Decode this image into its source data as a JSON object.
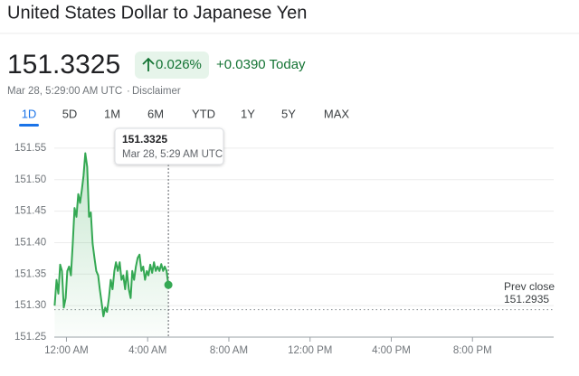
{
  "header": {
    "title": "United States Dollar to Japanese Yen",
    "price": "151.3325",
    "change_percent": "0.026%",
    "change": "+0.0390 Today",
    "timestamp": "Mar 28, 5:29:00 AM UTC",
    "separator": "·",
    "disclaimer": "Disclaimer",
    "tabs": [
      "1D",
      "5D",
      "1M",
      "6M",
      "YTD",
      "1Y",
      "5Y",
      "MAX"
    ],
    "selected_tab": 0
  },
  "chart_data": {
    "type": "line",
    "color": "#34a853",
    "x": [
      -0.58,
      -0.49,
      -0.4,
      -0.31,
      -0.22,
      -0.13,
      -0.04,
      0.04,
      0.13,
      0.22,
      0.31,
      0.4,
      0.49,
      0.58,
      0.67,
      0.76,
      0.84,
      0.93,
      1.02,
      1.11,
      1.2,
      1.29,
      1.38,
      1.47,
      1.56,
      1.64,
      1.73,
      1.82,
      1.91,
      2.0,
      2.09,
      2.18,
      2.27,
      2.36,
      2.44,
      2.53,
      2.62,
      2.71,
      2.8,
      2.89,
      2.98,
      3.07,
      3.16,
      3.24,
      3.33,
      3.42,
      3.51,
      3.6,
      3.69,
      3.78,
      3.87,
      3.96,
      4.04,
      4.13,
      4.22,
      4.31,
      4.4,
      4.49,
      4.58,
      4.67,
      4.76,
      4.84,
      4.93,
      5.02
    ],
    "values": [
      151.3,
      151.341,
      151.319,
      151.365,
      151.355,
      151.297,
      151.312,
      151.355,
      151.362,
      151.348,
      151.398,
      151.455,
      151.441,
      151.477,
      151.463,
      151.484,
      151.506,
      151.542,
      151.52,
      151.441,
      151.448,
      151.398,
      151.376,
      151.355,
      151.348,
      151.326,
      151.305,
      151.283,
      151.297,
      151.29,
      151.312,
      151.341,
      151.326,
      151.355,
      151.369,
      151.355,
      151.369,
      151.341,
      151.348,
      151.326,
      151.355,
      151.326,
      151.312,
      151.355,
      151.341,
      151.362,
      151.376,
      151.381,
      151.355,
      151.362,
      151.341,
      151.355,
      151.348,
      151.365,
      151.352,
      151.369,
      151.355,
      151.362,
      151.355,
      151.366,
      151.355,
      151.362,
      151.355,
      151.333
    ],
    "xlim": [
      -0.6,
      24
    ],
    "ylim": [
      151.25,
      151.58
    ],
    "xticks": [
      {
        "value": 0,
        "label": "12:00 AM"
      },
      {
        "value": 4,
        "label": "4:00 AM"
      },
      {
        "value": 8,
        "label": "8:00 AM"
      },
      {
        "value": 12,
        "label": "12:00 PM"
      },
      {
        "value": 16,
        "label": "4:00 PM"
      },
      {
        "value": 20,
        "label": "8:00 PM"
      }
    ],
    "yticks": [
      151.25,
      {
        "value": 151.3,
        "label": "151.30"
      },
      151.35,
      {
        "value": 151.4,
        "label": "151.40"
      },
      151.45,
      {
        "value": 151.5,
        "label": "151.50"
      },
      151.55
    ],
    "grid": true,
    "tooltip": {
      "price": "151.3325",
      "time": "Mar 28, 5:29 AM UTC"
    },
    "prev_close": {
      "label": "Prev close",
      "value": 151.2935
    }
  }
}
